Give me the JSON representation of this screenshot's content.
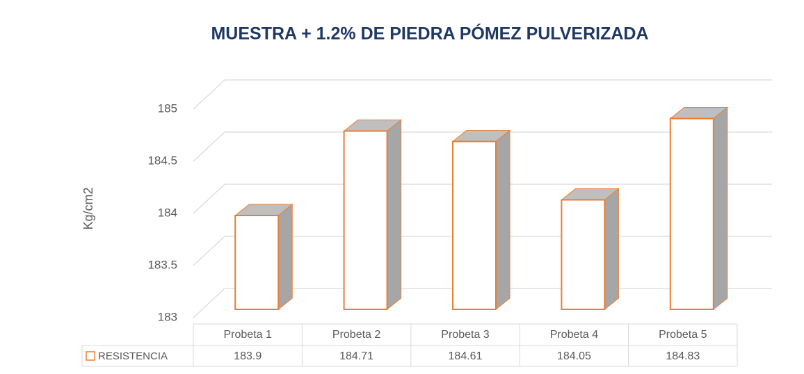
{
  "chart_data": {
    "type": "bar3d",
    "title": "MUESTRA + 1.2% DE PIEDRA PÓMEZ PULVERIZADA",
    "ylabel": "Kg/cm2",
    "categories": [
      "Probeta 1",
      "Probeta 2",
      "Probeta 3",
      "Probeta 4",
      "Probeta 5"
    ],
    "series": [
      {
        "name": "RESISTENCIA",
        "color": "#ed7d31",
        "values": [
          183.9,
          184.71,
          184.61,
          184.05,
          184.83
        ]
      }
    ],
    "ylim": [
      183,
      185
    ],
    "yticks": [
      183,
      183.5,
      184,
      184.5,
      185
    ],
    "grid": true,
    "data_table": true
  }
}
